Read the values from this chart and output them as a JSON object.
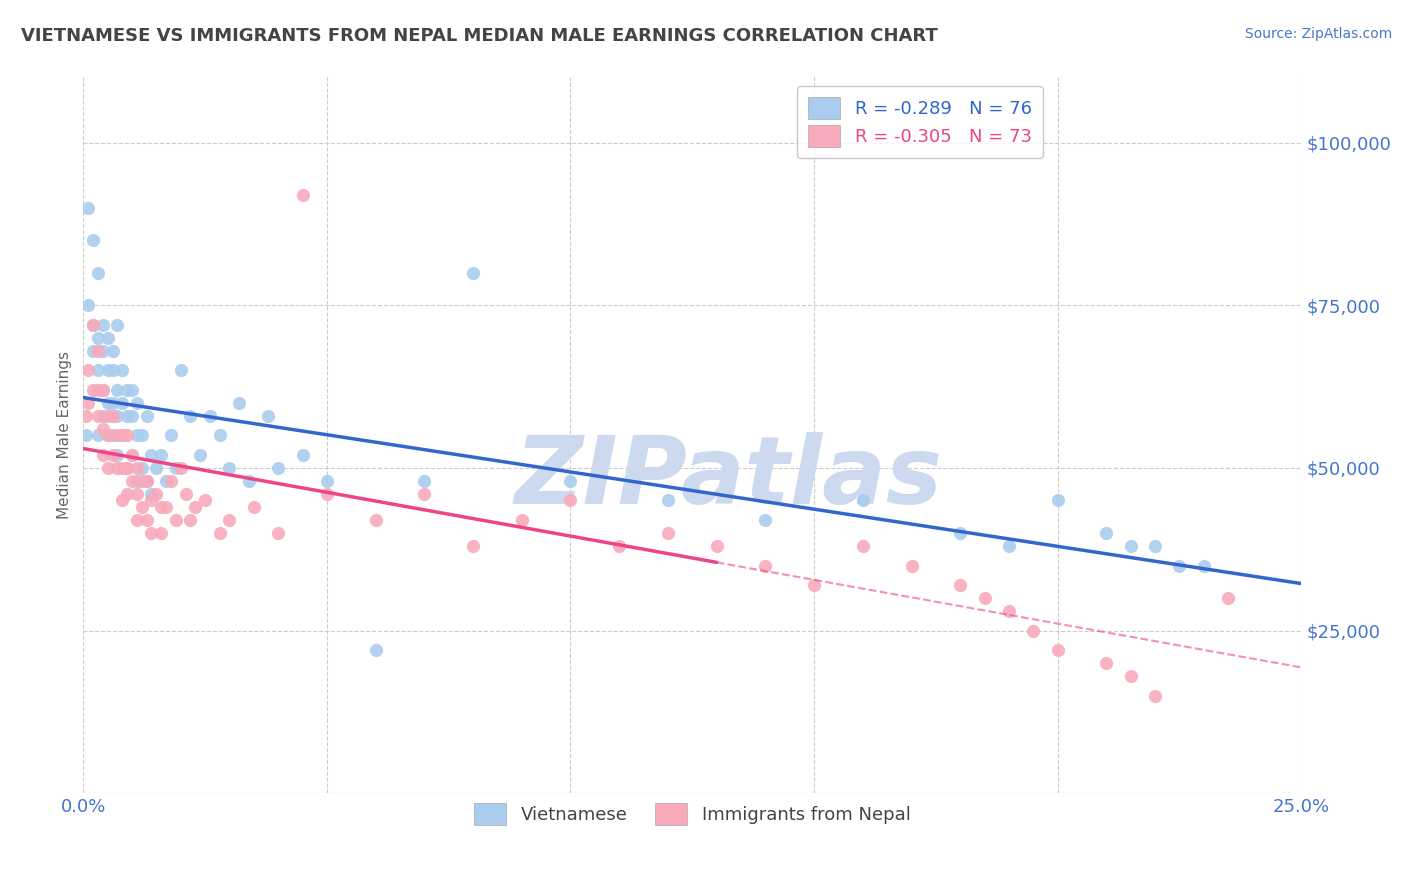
{
  "title": "VIETNAMESE VS IMMIGRANTS FROM NEPAL MEDIAN MALE EARNINGS CORRELATION CHART",
  "source": "Source: ZipAtlas.com",
  "ylabel": "Median Male Earnings",
  "xlim": [
    0.0,
    0.25
  ],
  "ylim": [
    0,
    110000
  ],
  "yticks": [
    25000,
    50000,
    75000,
    100000
  ],
  "xtick_positions": [
    0.0,
    0.05,
    0.1,
    0.15,
    0.2,
    0.25
  ],
  "xtick_labels": [
    "0.0%",
    "",
    "",
    "",
    "",
    "25.0%"
  ],
  "series1_name": "Vietnamese",
  "series1_R": -0.289,
  "series1_N": 76,
  "series1_color": "#aaccee",
  "series1_line_color": "#3366cc",
  "series2_name": "Immigrants from Nepal",
  "series2_R": -0.305,
  "series2_N": 73,
  "series2_color": "#f8aabb",
  "series2_line_color": "#ee4488",
  "series2_line_solid_end": 0.13,
  "watermark": "ZIPatlas",
  "watermark_color": "#ccd9ee",
  "grid_color": "#cccccc",
  "title_color": "#444444",
  "axis_label_color": "#4477cc",
  "background_color": "#ffffff",
  "series1_x": [
    0.0005,
    0.001,
    0.001,
    0.002,
    0.002,
    0.002,
    0.003,
    0.003,
    0.003,
    0.003,
    0.004,
    0.004,
    0.004,
    0.004,
    0.005,
    0.005,
    0.005,
    0.005,
    0.006,
    0.006,
    0.006,
    0.006,
    0.007,
    0.007,
    0.007,
    0.007,
    0.008,
    0.008,
    0.008,
    0.009,
    0.009,
    0.009,
    0.01,
    0.01,
    0.01,
    0.011,
    0.011,
    0.011,
    0.012,
    0.012,
    0.013,
    0.013,
    0.014,
    0.014,
    0.015,
    0.016,
    0.017,
    0.018,
    0.019,
    0.02,
    0.022,
    0.024,
    0.026,
    0.028,
    0.03,
    0.032,
    0.034,
    0.038,
    0.04,
    0.045,
    0.05,
    0.06,
    0.07,
    0.08,
    0.1,
    0.12,
    0.14,
    0.16,
    0.18,
    0.19,
    0.2,
    0.21,
    0.215,
    0.22,
    0.225,
    0.23
  ],
  "series1_y": [
    55000,
    90000,
    75000,
    72000,
    85000,
    68000,
    70000,
    80000,
    65000,
    55000,
    72000,
    68000,
    62000,
    58000,
    65000,
    70000,
    60000,
    55000,
    68000,
    65000,
    60000,
    55000,
    62000,
    72000,
    58000,
    52000,
    60000,
    65000,
    55000,
    62000,
    58000,
    50000,
    62000,
    58000,
    52000,
    60000,
    55000,
    48000,
    55000,
    50000,
    58000,
    48000,
    52000,
    46000,
    50000,
    52000,
    48000,
    55000,
    50000,
    65000,
    58000,
    52000,
    58000,
    55000,
    50000,
    60000,
    48000,
    58000,
    50000,
    52000,
    48000,
    22000,
    48000,
    80000,
    48000,
    45000,
    42000,
    45000,
    40000,
    38000,
    45000,
    40000,
    38000,
    38000,
    35000,
    35000
  ],
  "series2_x": [
    0.0005,
    0.001,
    0.001,
    0.002,
    0.002,
    0.003,
    0.003,
    0.003,
    0.004,
    0.004,
    0.004,
    0.005,
    0.005,
    0.005,
    0.006,
    0.006,
    0.007,
    0.007,
    0.008,
    0.008,
    0.008,
    0.009,
    0.009,
    0.009,
    0.01,
    0.01,
    0.011,
    0.011,
    0.011,
    0.012,
    0.012,
    0.013,
    0.013,
    0.014,
    0.014,
    0.015,
    0.016,
    0.016,
    0.017,
    0.018,
    0.019,
    0.02,
    0.021,
    0.022,
    0.023,
    0.025,
    0.028,
    0.03,
    0.035,
    0.04,
    0.045,
    0.05,
    0.06,
    0.07,
    0.08,
    0.09,
    0.1,
    0.11,
    0.12,
    0.13,
    0.14,
    0.15,
    0.16,
    0.17,
    0.18,
    0.185,
    0.19,
    0.195,
    0.2,
    0.21,
    0.215,
    0.22,
    0.235
  ],
  "series2_y": [
    58000,
    65000,
    60000,
    72000,
    62000,
    68000,
    62000,
    58000,
    62000,
    56000,
    52000,
    58000,
    55000,
    50000,
    58000,
    52000,
    55000,
    50000,
    55000,
    50000,
    45000,
    55000,
    50000,
    46000,
    52000,
    48000,
    50000,
    46000,
    42000,
    48000,
    44000,
    48000,
    42000,
    45000,
    40000,
    46000,
    44000,
    40000,
    44000,
    48000,
    42000,
    50000,
    46000,
    42000,
    44000,
    45000,
    40000,
    42000,
    44000,
    40000,
    92000,
    46000,
    42000,
    46000,
    38000,
    42000,
    45000,
    38000,
    40000,
    38000,
    35000,
    32000,
    38000,
    35000,
    32000,
    30000,
    28000,
    25000,
    22000,
    20000,
    18000,
    15000,
    30000
  ]
}
